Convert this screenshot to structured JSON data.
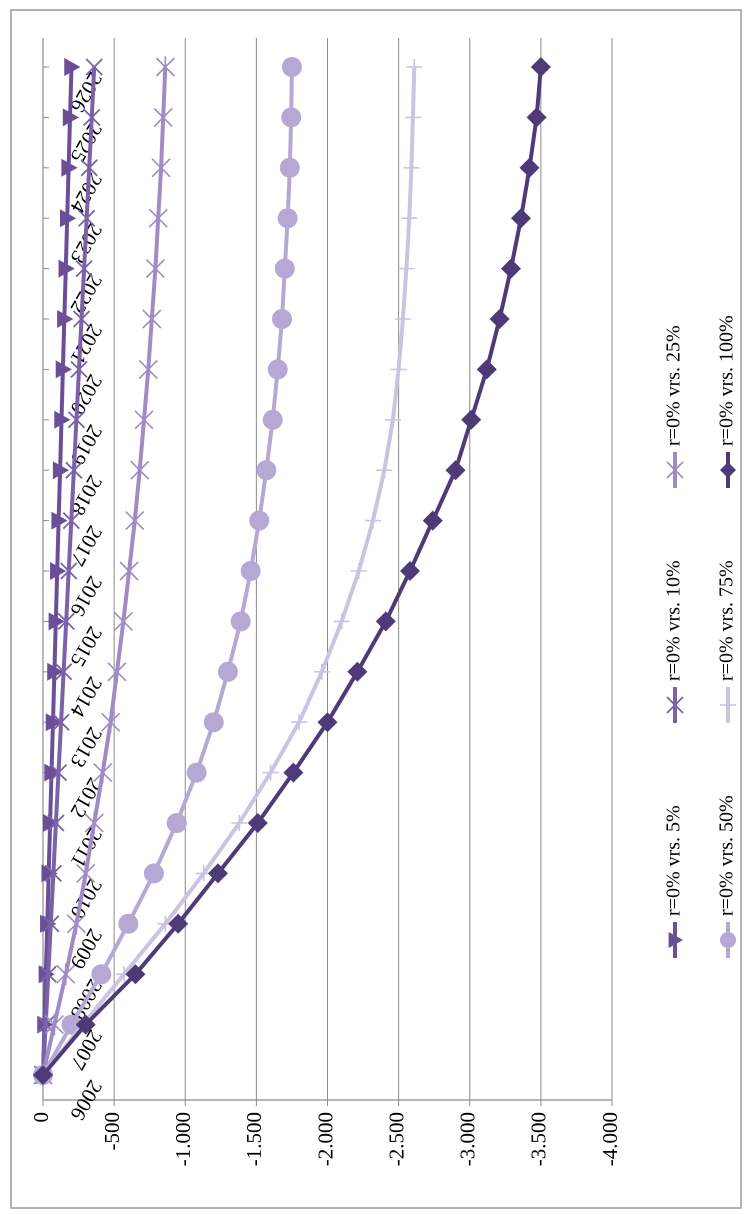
{
  "chart_data": {
    "type": "line",
    "title": "",
    "xlabel": "",
    "ylabel": "",
    "orientation": "rotated-90-clockwise",
    "x": [
      2006,
      2007,
      2008,
      2009,
      2010,
      2011,
      2012,
      2013,
      2014,
      2015,
      2016,
      2017,
      2018,
      2019,
      2020,
      2021,
      2022,
      2023,
      2024,
      2025,
      2026
    ],
    "x_tick_labels": [
      "2006",
      "2007",
      "2008",
      "2009",
      "2010",
      "2011",
      "2012",
      "2013",
      "2014",
      "2015",
      "2016",
      "2017",
      "2018",
      "2019",
      "2020",
      "2021",
      "2022",
      "2023",
      "2024",
      "2025",
      "2026"
    ],
    "ylim": [
      -4000,
      0
    ],
    "y_ticks": [
      0,
      -500,
      -1000,
      -1500,
      -2000,
      -2500,
      -3000,
      -3500,
      -4000
    ],
    "y_tick_labels": [
      "0",
      "-500",
      "-1.000",
      "-1.500",
      "-2.000",
      "-2.500",
      "-3.000",
      "-3.500",
      "-4.000"
    ],
    "grid": "major-y",
    "legend_position": "bottom",
    "series": [
      {
        "name": "r=0% vrs. 5%",
        "color": "#6a4f98",
        "marker": "triangle",
        "values": [
          0,
          -10,
          -20,
          -30,
          -40,
          -50,
          -60,
          -70,
          -80,
          -90,
          -100,
          -110,
          -120,
          -130,
          -140,
          -150,
          -160,
          -170,
          -180,
          -190,
          -200
        ]
      },
      {
        "name": "r=0% vrs. 10%",
        "color": "#7a62a8",
        "marker": "x",
        "values": [
          0,
          -19,
          -37,
          -55,
          -73,
          -91,
          -109,
          -127,
          -145,
          -163,
          -181,
          -199,
          -217,
          -235,
          -253,
          -271,
          -289,
          -307,
          -325,
          -343,
          -360
        ]
      },
      {
        "name": "r=0% vrs. 25%",
        "color": "#9f8cc5",
        "marker": "asterisk",
        "values": [
          0,
          -80,
          -160,
          -235,
          -300,
          -360,
          -420,
          -475,
          -520,
          -565,
          -605,
          -645,
          -680,
          -710,
          -740,
          -765,
          -790,
          -810,
          -830,
          -845,
          -860
        ]
      },
      {
        "name": "r=0% vrs. 50%",
        "color": "#b5a8d4",
        "marker": "circle",
        "values": [
          0,
          -200,
          -410,
          -600,
          -780,
          -940,
          -1080,
          -1200,
          -1300,
          -1390,
          -1460,
          -1520,
          -1570,
          -1615,
          -1650,
          -1680,
          -1700,
          -1720,
          -1735,
          -1745,
          -1750
        ]
      },
      {
        "name": "r=0% vrs. 75%",
        "color": "#cbc3e1",
        "marker": "plus",
        "values": [
          0,
          -280,
          -570,
          -860,
          -1130,
          -1380,
          -1600,
          -1800,
          -1960,
          -2100,
          -2220,
          -2320,
          -2400,
          -2460,
          -2500,
          -2530,
          -2555,
          -2575,
          -2590,
          -2600,
          -2610
        ]
      },
      {
        "name": "r=0% vrs. 100%",
        "color": "#4f3a78",
        "marker": "diamond",
        "values": [
          0,
          -300,
          -650,
          -950,
          -1230,
          -1510,
          -1760,
          -2000,
          -2210,
          -2410,
          -2580,
          -2740,
          -2900,
          -3010,
          -3120,
          -3210,
          -3290,
          -3360,
          -3420,
          -3470,
          -3500
        ]
      }
    ]
  }
}
